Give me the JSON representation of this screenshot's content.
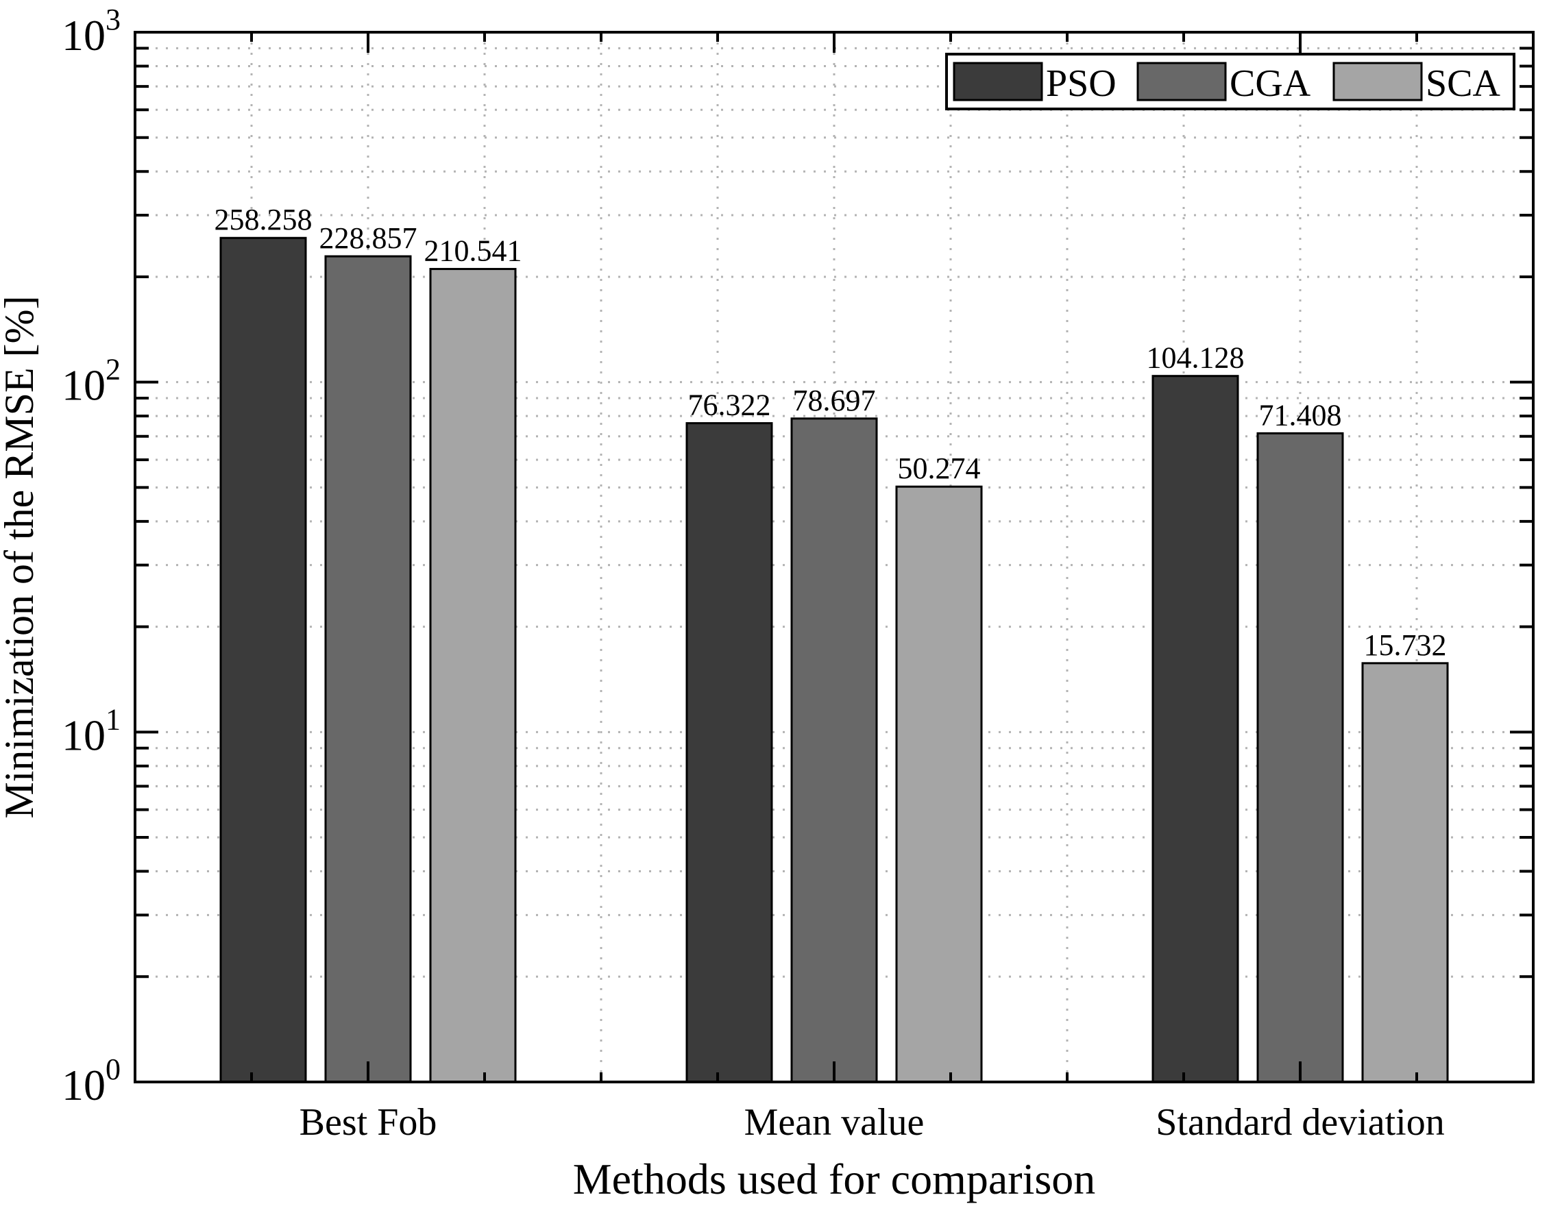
{
  "figure": {
    "ylabel": "Minimization of the RMSE [%]",
    "xlabel": "Methods used for comparison"
  },
  "chart_data": {
    "type": "bar",
    "title": "",
    "xlabel": "Methods used for comparison",
    "ylabel": "Minimization of the RMSE [%]",
    "yscale": "log",
    "ylim": [
      1,
      1000
    ],
    "grid": {
      "style": "dotted",
      "color": "#b3b3b3",
      "x_minor_divisions": 12
    },
    "categories": [
      "Best Fob",
      "Mean value",
      "Standard deviation"
    ],
    "series": [
      {
        "name": "PSO",
        "color": "#3b3b3b",
        "values": [
          258.258,
          76.322,
          104.128
        ],
        "labels": [
          "258.258",
          "76.322",
          "104.128"
        ]
      },
      {
        "name": "CGA",
        "color": "#686868",
        "values": [
          228.857,
          78.697,
          71.408
        ],
        "labels": [
          "228.857",
          "78.697",
          "71.408"
        ]
      },
      {
        "name": "SCA",
        "color": "#a5a5a5",
        "values": [
          210.541,
          50.274,
          15.732
        ],
        "labels": [
          "210.541",
          "50.274",
          "15.732"
        ]
      }
    ],
    "bar_edge_color": "#000000",
    "ytick_values": [
      1,
      10,
      100,
      1000
    ],
    "ytick_labels": [
      {
        "base": "10",
        "exp": "0"
      },
      {
        "base": "10",
        "exp": "1"
      },
      {
        "base": "10",
        "exp": "2"
      },
      {
        "base": "10",
        "exp": "3"
      }
    ],
    "legend": {
      "position": "north-east",
      "entries": [
        "PSO",
        "CGA",
        "SCA"
      ]
    }
  }
}
